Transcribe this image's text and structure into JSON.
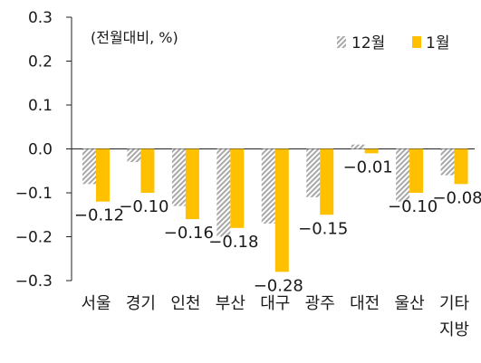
{
  "chart_data": {
    "type": "bar",
    "unit_label": "(전월대비, %)",
    "categories": [
      "서울",
      "경기",
      "인천",
      "부산",
      "대구",
      "광주",
      "대전",
      "울산",
      "기타 지방"
    ],
    "series": [
      {
        "name": "12월",
        "values": [
          -0.08,
          -0.03,
          -0.13,
          -0.2,
          -0.17,
          -0.11,
          0.01,
          -0.12,
          -0.06
        ],
        "color": "#b5b5b5",
        "pattern": "diagonal-hatch"
      },
      {
        "name": "1월",
        "values": [
          -0.12,
          -0.1,
          -0.16,
          -0.18,
          -0.28,
          -0.15,
          -0.01,
          -0.1,
          -0.08
        ],
        "color": "#ffc000"
      }
    ],
    "data_labels": [
      "-0.12",
      "-0.10",
      "-0.16",
      "-0.18",
      "-0.28",
      "-0.15",
      "-0.01",
      "-0.10",
      "-0.08"
    ],
    "yticks": [
      "0.3",
      "0.2",
      "0.1",
      "0.0",
      "-0.1",
      "-0.2",
      "-0.3"
    ],
    "ylim": [
      -0.3,
      0.3
    ],
    "grid": false,
    "legend_position": "top-right"
  }
}
